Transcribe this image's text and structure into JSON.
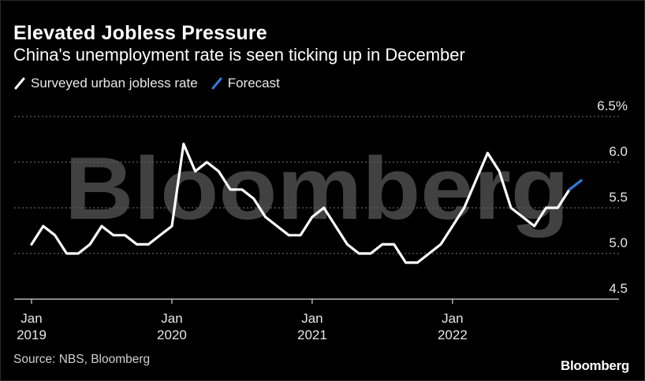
{
  "header": {
    "title": "Elevated Jobless Pressure",
    "subtitle": "China's unemployment rate is seen ticking up in December"
  },
  "legend": {
    "items": [
      {
        "label": "Surveyed urban jobless rate",
        "color": "#ffffff"
      },
      {
        "label": "Forecast",
        "color": "#2f7de1"
      }
    ]
  },
  "footer": {
    "source": "Source: NBS, Bloomberg",
    "brand": "Bloomberg"
  },
  "watermark": {
    "text": "Bloomberg"
  },
  "chart_data": {
    "type": "line",
    "title": "Elevated Jobless Pressure",
    "subtitle": "China's unemployment rate is seen ticking up in December",
    "xlabel": "",
    "ylabel": "",
    "ylim": [
      4.5,
      6.5
    ],
    "yticks": [
      {
        "value": 6.5,
        "label": "6.5%"
      },
      {
        "value": 6.0,
        "label": "6.0"
      },
      {
        "value": 5.5,
        "label": "5.5"
      },
      {
        "value": 5.0,
        "label": "5.0"
      },
      {
        "value": 4.5,
        "label": "4.5"
      }
    ],
    "xticks": [
      {
        "date": "2019-01",
        "line1": "Jan",
        "line2": "2019"
      },
      {
        "date": "2020-01",
        "line1": "Jan",
        "line2": "2020"
      },
      {
        "date": "2021-01",
        "line1": "Jan",
        "line2": "2021"
      },
      {
        "date": "2022-01",
        "line1": "Jan",
        "line2": "2022"
      }
    ],
    "grid": true,
    "legend_position": "top-left",
    "series": [
      {
        "name": "Surveyed urban jobless rate",
        "color": "#ffffff",
        "points": [
          [
            "2019-01",
            5.1
          ],
          [
            "2019-02",
            5.3
          ],
          [
            "2019-03",
            5.2
          ],
          [
            "2019-04",
            5.0
          ],
          [
            "2019-05",
            5.0
          ],
          [
            "2019-06",
            5.1
          ],
          [
            "2019-07",
            5.3
          ],
          [
            "2019-08",
            5.2
          ],
          [
            "2019-09",
            5.2
          ],
          [
            "2019-10",
            5.1
          ],
          [
            "2019-11",
            5.1
          ],
          [
            "2019-12",
            5.2
          ],
          [
            "2020-01",
            5.3
          ],
          [
            "2020-02",
            6.2
          ],
          [
            "2020-03",
            5.9
          ],
          [
            "2020-04",
            6.0
          ],
          [
            "2020-05",
            5.9
          ],
          [
            "2020-06",
            5.7
          ],
          [
            "2020-07",
            5.7
          ],
          [
            "2020-08",
            5.6
          ],
          [
            "2020-09",
            5.4
          ],
          [
            "2020-10",
            5.3
          ],
          [
            "2020-11",
            5.2
          ],
          [
            "2020-12",
            5.2
          ],
          [
            "2021-01",
            5.4
          ],
          [
            "2021-02",
            5.5
          ],
          [
            "2021-03",
            5.3
          ],
          [
            "2021-04",
            5.1
          ],
          [
            "2021-05",
            5.0
          ],
          [
            "2021-06",
            5.0
          ],
          [
            "2021-07",
            5.1
          ],
          [
            "2021-08",
            5.1
          ],
          [
            "2021-09",
            4.9
          ],
          [
            "2021-10",
            4.9
          ],
          [
            "2021-11",
            5.0
          ],
          [
            "2021-12",
            5.1
          ],
          [
            "2022-01",
            5.3
          ],
          [
            "2022-02",
            5.5
          ],
          [
            "2022-03",
            5.8
          ],
          [
            "2022-04",
            6.1
          ],
          [
            "2022-05",
            5.9
          ],
          [
            "2022-06",
            5.5
          ],
          [
            "2022-07",
            5.4
          ],
          [
            "2022-08",
            5.3
          ],
          [
            "2022-09",
            5.5
          ],
          [
            "2022-10",
            5.5
          ],
          [
            "2022-11",
            5.7
          ]
        ]
      },
      {
        "name": "Forecast",
        "color": "#2f7de1",
        "points": [
          [
            "2022-11",
            5.7
          ],
          [
            "2022-12",
            5.8
          ]
        ]
      }
    ]
  }
}
